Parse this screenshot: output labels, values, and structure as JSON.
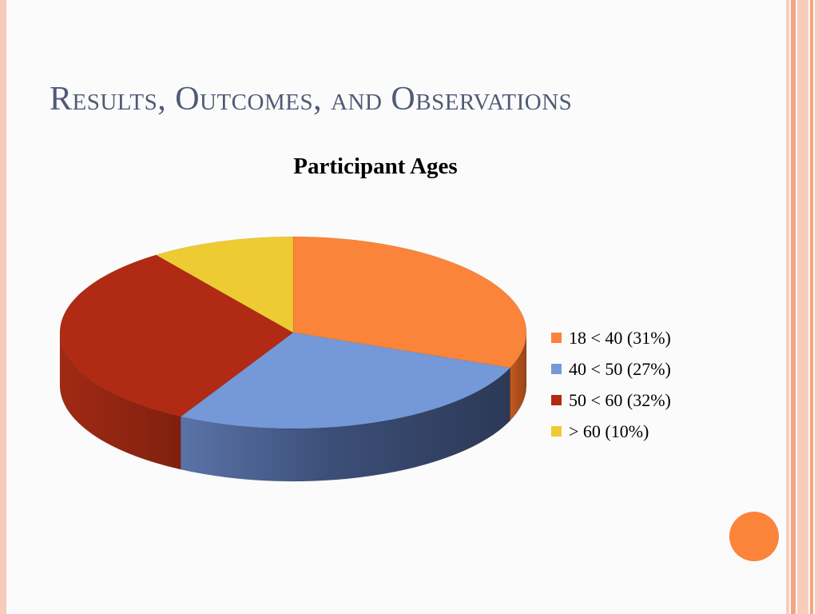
{
  "slide": {
    "title": "Results, Outcomes, and Observations"
  },
  "colors": {
    "title": "#4f5a75",
    "accent": "#f9843a",
    "stripe_light": "#f9cdbb",
    "stripe_dark": "#f4a582"
  },
  "chart_data": {
    "type": "pie",
    "title": "Participant Ages",
    "three_d": true,
    "legend_position": "right",
    "slices": [
      {
        "label": "18 < 40 (31%)",
        "value": 31,
        "color": "#f9843a"
      },
      {
        "label": "40 < 50 (27%)",
        "value": 27,
        "color": "#7598d9"
      },
      {
        "label": "50 < 60 (32%)",
        "value": 32,
        "color": "#b02a14"
      },
      {
        "label": "> 60 (10%)",
        "value": 10,
        "color": "#eecb32"
      }
    ]
  }
}
